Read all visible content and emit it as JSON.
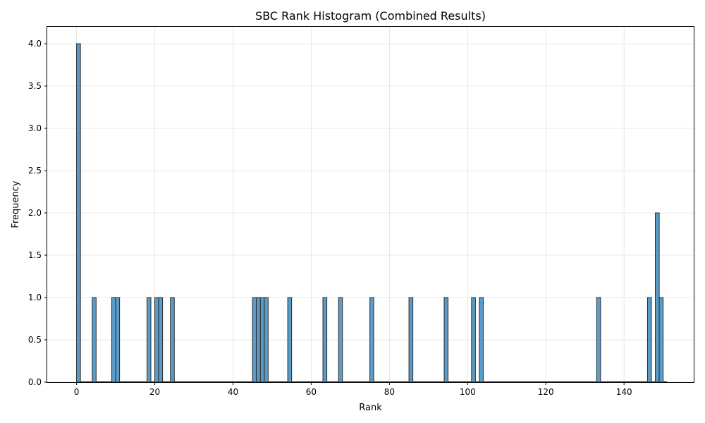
{
  "chart_data": {
    "type": "bar",
    "title": "SBC Rank Histogram (Combined Results)",
    "xlabel": "Rank",
    "ylabel": "Frequency",
    "xlim": [
      -7.5,
      158
    ],
    "ylim": [
      0,
      4.2
    ],
    "xticks": [
      0,
      20,
      40,
      60,
      80,
      100,
      120,
      140
    ],
    "yticks": [
      0.0,
      0.5,
      1.0,
      1.5,
      2.0,
      2.5,
      3.0,
      3.5,
      4.0
    ],
    "xtick_labels": [
      "0",
      "20",
      "40",
      "60",
      "80",
      "100",
      "120",
      "140"
    ],
    "ytick_labels": [
      "0.0",
      "0.5",
      "1.0",
      "1.5",
      "2.0",
      "2.5",
      "3.0",
      "3.5",
      "4.0"
    ],
    "grid": true,
    "bin_start": 0,
    "bin_width": 1,
    "bar_width": 1,
    "bin_count": 151,
    "bars": [
      {
        "x": 0,
        "count": 4
      },
      {
        "x": 4,
        "count": 1
      },
      {
        "x": 9,
        "count": 1
      },
      {
        "x": 10,
        "count": 1
      },
      {
        "x": 18,
        "count": 1
      },
      {
        "x": 20,
        "count": 1
      },
      {
        "x": 21,
        "count": 1
      },
      {
        "x": 24,
        "count": 1
      },
      {
        "x": 45,
        "count": 1
      },
      {
        "x": 46,
        "count": 1
      },
      {
        "x": 47,
        "count": 1
      },
      {
        "x": 48,
        "count": 1
      },
      {
        "x": 54,
        "count": 1
      },
      {
        "x": 63,
        "count": 1
      },
      {
        "x": 67,
        "count": 1
      },
      {
        "x": 75,
        "count": 1
      },
      {
        "x": 85,
        "count": 1
      },
      {
        "x": 94,
        "count": 1
      },
      {
        "x": 101,
        "count": 1
      },
      {
        "x": 103,
        "count": 1
      },
      {
        "x": 133,
        "count": 1
      },
      {
        "x": 146,
        "count": 1
      },
      {
        "x": 148,
        "count": 2
      },
      {
        "x": 149,
        "count": 1
      }
    ],
    "colors": {
      "bar_fill": "#5b9bc8",
      "bar_edge": "#2b2b2b",
      "grid": "#e0e0e0",
      "axis": "#000000"
    }
  }
}
